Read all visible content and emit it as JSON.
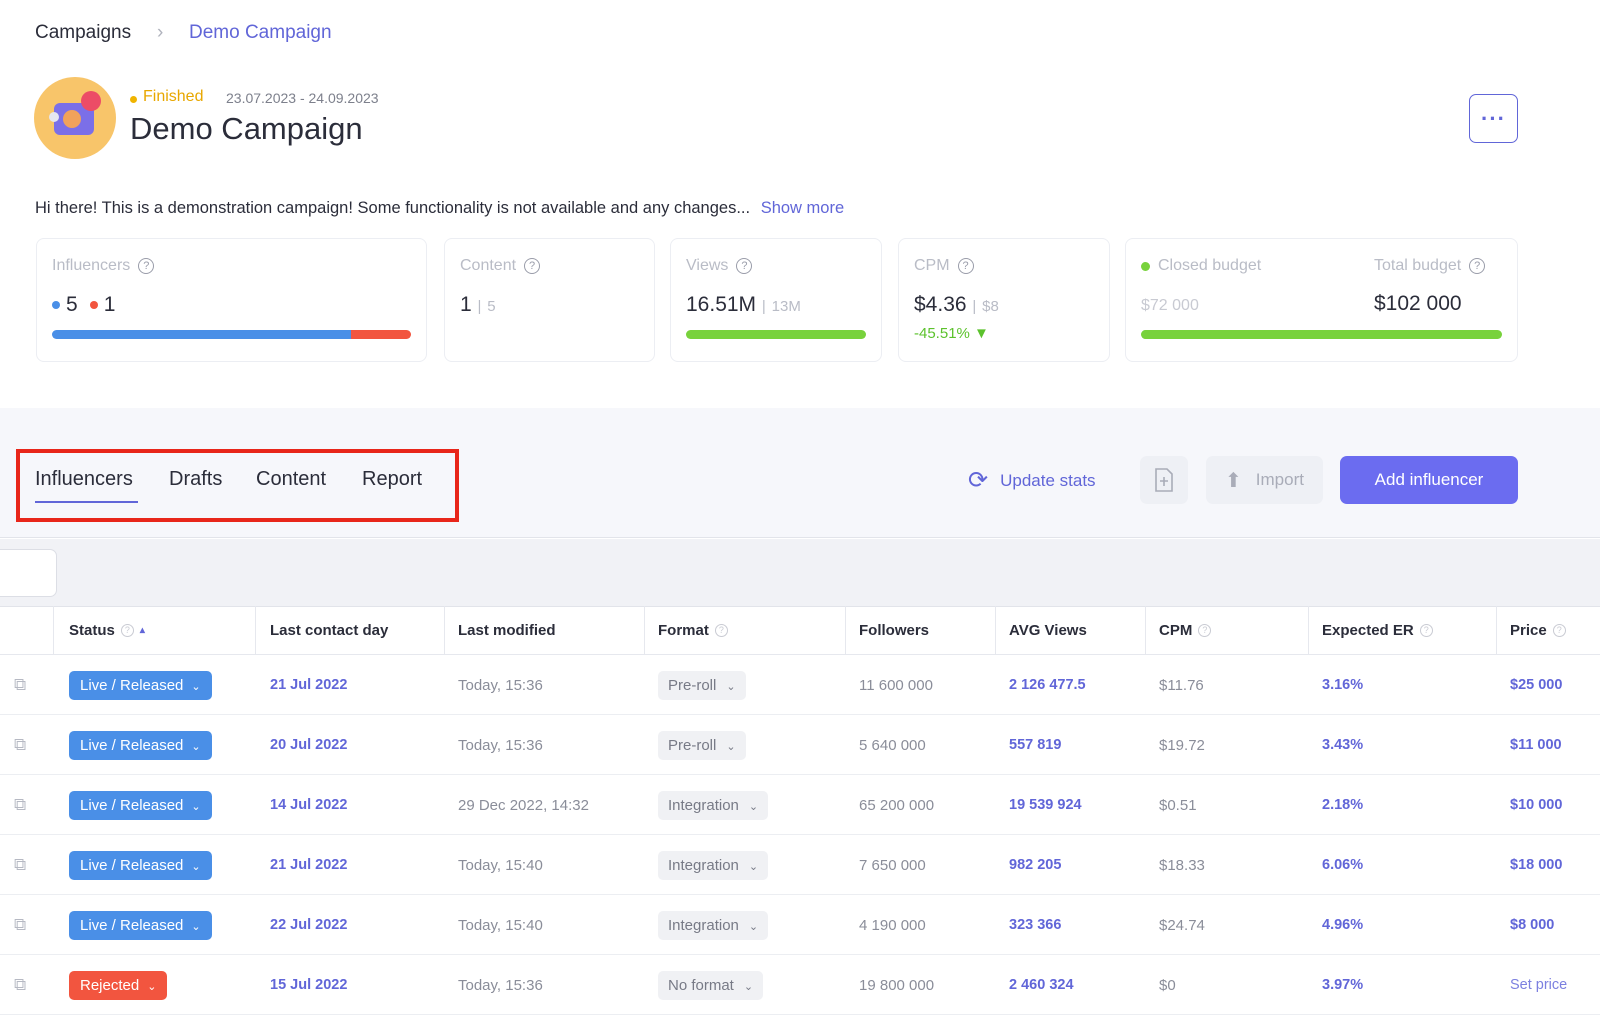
{
  "breadcrumb": [
    "Campaigns",
    "Demo Campaign"
  ],
  "campaign": {
    "status": "Finished",
    "dates": "23.07.2023 - 24.09.2023",
    "title": "Demo Campaign",
    "description": "Hi there! This is a demonstration campaign! Some functionality is not available and any changes...",
    "show_more": "Show more"
  },
  "stats": {
    "influencers": {
      "label": "Influencers",
      "active": 5,
      "rejected": 1
    },
    "content": {
      "label": "Content",
      "value": 1,
      "total": 5
    },
    "views": {
      "label": "Views",
      "value": "16.51M",
      "target": "13M"
    },
    "cpm": {
      "label": "CPM",
      "value": "$4.36",
      "target": "$8",
      "change": "-45.51%"
    },
    "budget": {
      "closed_label": "Closed budget",
      "closed": "$72 000",
      "total_label": "Total budget",
      "total": "$102 000"
    }
  },
  "tabs": [
    "Influencers",
    "Drafts",
    "Content",
    "Report"
  ],
  "actions": {
    "update": "Update stats",
    "import": "Import",
    "add": "Add influencer"
  },
  "table": {
    "columns": [
      "Status",
      "Last contact day",
      "Last modified",
      "Format",
      "Followers",
      "AVG Views",
      "CPM",
      "Expected ER",
      "Price"
    ],
    "rows": [
      {
        "status": "Live / Released",
        "status_color": "#4a8fe7",
        "cells": [
          "21 Jul 2022",
          "Today, 15:36",
          "Pre-roll",
          "11 600 000",
          "2 126 477.5",
          "$11.76",
          "3.16%",
          "$25 000"
        ]
      },
      {
        "status": "Live / Released",
        "status_color": "#4a8fe7",
        "cells": [
          "20 Jul 2022",
          "Today, 15:36",
          "Pre-roll",
          "5 640 000",
          "557 819",
          "$19.72",
          "3.43%",
          "$11 000"
        ]
      },
      {
        "status": "Live / Released",
        "status_color": "#4a8fe7",
        "cells": [
          "14 Jul 2022",
          "29 Dec 2022, 14:32",
          "Integration",
          "65 200 000",
          "19 539 924",
          "$0.51",
          "2.18%",
          "$10 000"
        ]
      },
      {
        "status": "Live / Released",
        "status_color": "#4a8fe7",
        "cells": [
          "21 Jul 2022",
          "Today, 15:40",
          "Integration",
          "7 650 000",
          "982 205",
          "$18.33",
          "6.06%",
          "$18 000"
        ]
      },
      {
        "status": "Live / Released",
        "status_color": "#4a8fe7",
        "cells": [
          "22 Jul 2022",
          "Today, 15:40",
          "Integration",
          "4 190 000",
          "323 366",
          "$24.74",
          "4.96%",
          "$8 000"
        ]
      },
      {
        "status": "Rejected",
        "status_color": "#f2553f",
        "cells": [
          "15 Jul 2022",
          "Today, 15:36",
          "No format",
          "19 800 000",
          "2 460 324",
          "$0",
          "3.97%",
          "Set price"
        ]
      }
    ]
  }
}
